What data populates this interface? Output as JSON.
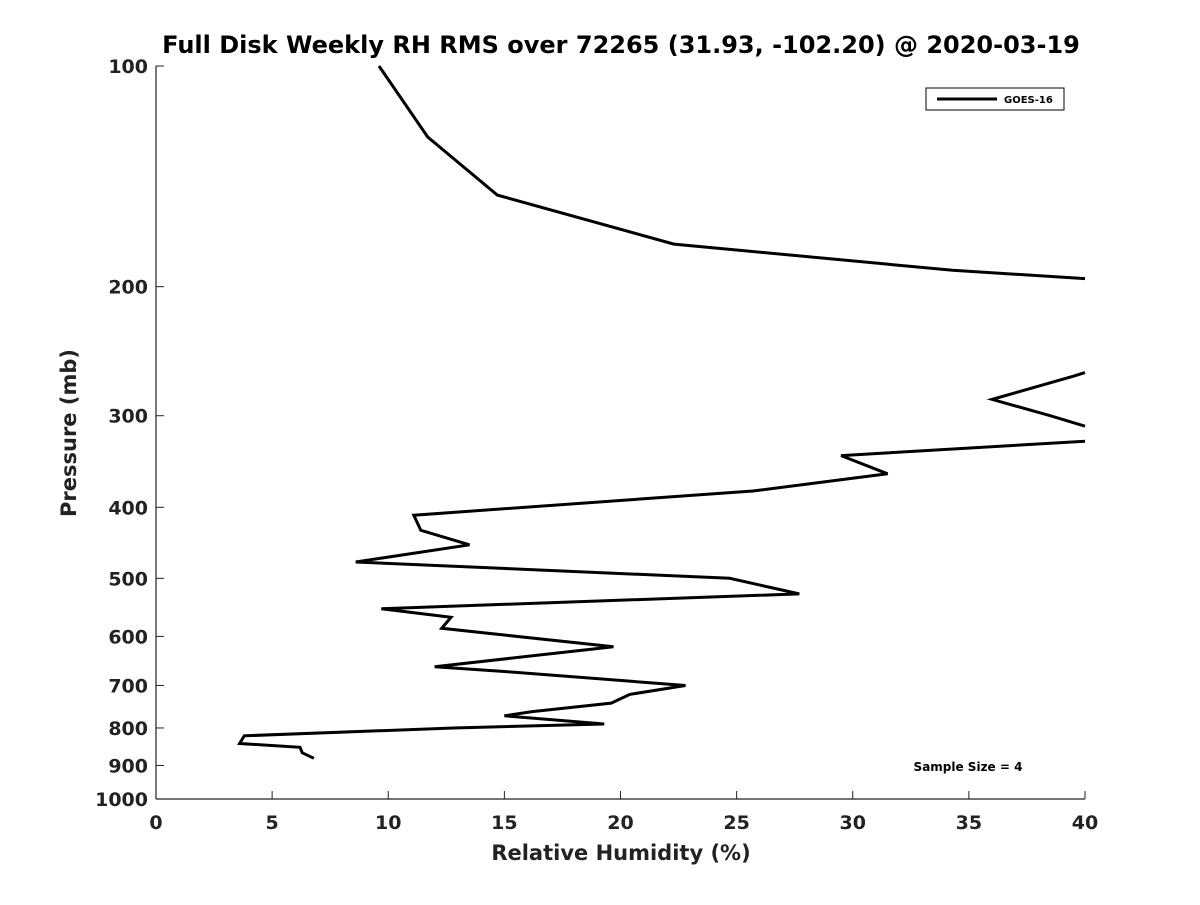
{
  "chart_data": {
    "type": "line",
    "title": "Full Disk Weekly RH RMS over 72265 (31.93, -102.20) @ 2020-03-19",
    "xlabel": "Relative Humidity (%)",
    "ylabel": "Pressure (mb)",
    "xlim": [
      0,
      40
    ],
    "ylim": [
      100,
      1000
    ],
    "y_scale": "log",
    "y_inverted": true,
    "grid": false,
    "x_ticks": [
      0,
      5,
      10,
      15,
      20,
      25,
      30,
      35,
      40
    ],
    "x_tick_labels": [
      "0",
      "5",
      "10",
      "15",
      "20",
      "25",
      "30",
      "35",
      "40"
    ],
    "y_ticks": [
      100,
      200,
      300,
      400,
      500,
      600,
      700,
      800,
      900,
      1000
    ],
    "y_tick_labels": [
      "100",
      "200",
      "300",
      "400",
      "500",
      "600",
      "700",
      "800",
      "900",
      "1000"
    ],
    "legend_position": "top-right",
    "annotation": "Sample Size = 4",
    "series": [
      {
        "name": "GOES-16",
        "color": "#000000",
        "segments": [
          {
            "x": [
              9.6,
              11.7,
              14.7,
              22.3,
              34.3,
              40.0
            ],
            "y": [
              100,
              125,
              150,
              175,
              190,
              195
            ]
          },
          {
            "x": [
              40.0,
              39.5,
              36.0,
              38.5,
              40.0
            ],
            "y": [
              262,
              265,
              285,
              300,
              310
            ]
          },
          {
            "x": [
              40.0,
              29.5,
              31.5,
              25.7,
              11.1,
              11.4,
              13.5,
              8.6,
              24.7,
              27.7,
              9.7,
              12.7,
              12.3,
              19.7,
              12.0,
              15.0,
              22.8,
              20.4,
              19.6,
              16.2,
              15.0,
              19.3,
              12.8,
              3.8,
              3.6,
              6.2,
              6.3,
              6.8
            ],
            "y": [
              325,
              340,
              360,
              380,
              410,
              430,
              450,
              475,
              500,
              525,
              550,
              565,
              585,
              620,
              660,
              670,
              700,
              720,
              740,
              760,
              770,
              790,
              800,
              820,
              840,
              850,
              865,
              880
            ]
          }
        ]
      }
    ]
  }
}
